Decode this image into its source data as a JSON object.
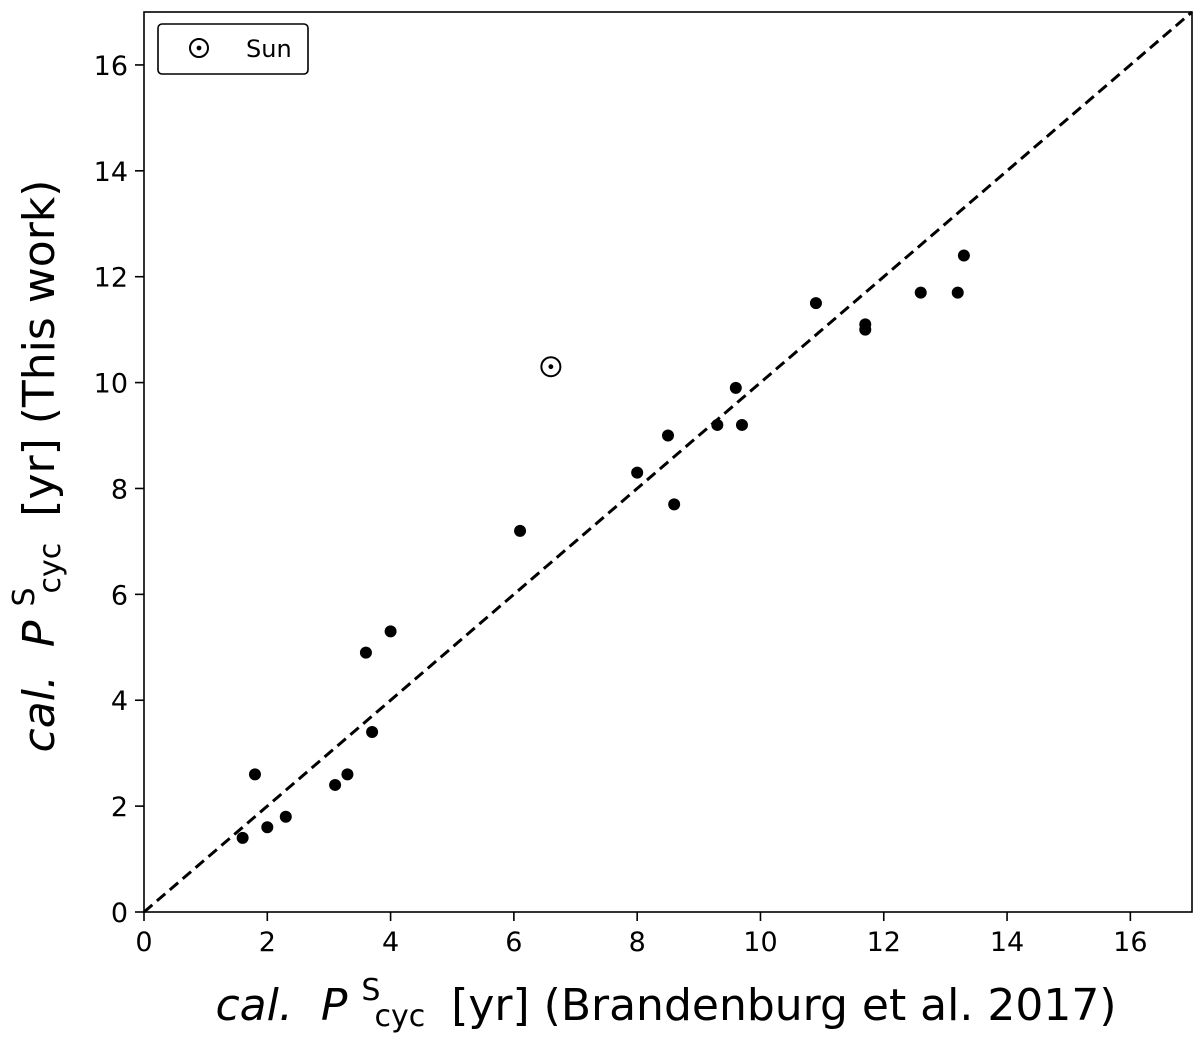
{
  "chart_data": {
    "type": "scatter",
    "xlabel": {
      "prefix": "cal.",
      "symbol": "P",
      "superscript": "S",
      "subscript": "cyc",
      "suffix": "[yr] (Brandenburg et al. 2017)"
    },
    "ylabel": {
      "prefix": "cal.",
      "symbol": "P",
      "superscript": "S",
      "subscript": "cyc",
      "suffix": "[yr] (This work)"
    },
    "xlim": [
      0,
      17
    ],
    "ylim": [
      0,
      17
    ],
    "xticks": [
      0,
      2,
      4,
      6,
      8,
      10,
      12,
      14,
      16
    ],
    "yticks": [
      0,
      2,
      4,
      6,
      8,
      10,
      12,
      14,
      16
    ],
    "grid": false,
    "legend": {
      "placement": "top-left",
      "entries": [
        {
          "label": "Sun",
          "marker": "sun-symbol"
        }
      ]
    },
    "reference_line": {
      "style": "dashed",
      "x": [
        0,
        17
      ],
      "y": [
        0,
        17
      ]
    },
    "colors": {
      "points": "#000000",
      "line": "#000000"
    },
    "series": [
      {
        "marker": "filled-circle",
        "points": [
          {
            "x": 1.6,
            "y": 1.4
          },
          {
            "x": 1.8,
            "y": 2.6
          },
          {
            "x": 2.0,
            "y": 1.6
          },
          {
            "x": 2.3,
            "y": 1.8
          },
          {
            "x": 3.1,
            "y": 2.4
          },
          {
            "x": 3.3,
            "y": 2.6
          },
          {
            "x": 3.6,
            "y": 4.9
          },
          {
            "x": 3.7,
            "y": 3.4
          },
          {
            "x": 4.0,
            "y": 5.3
          },
          {
            "x": 6.1,
            "y": 7.2
          },
          {
            "x": 8.0,
            "y": 8.3
          },
          {
            "x": 8.5,
            "y": 9.0
          },
          {
            "x": 8.6,
            "y": 7.7
          },
          {
            "x": 9.3,
            "y": 9.2
          },
          {
            "x": 9.6,
            "y": 9.9
          },
          {
            "x": 9.7,
            "y": 9.2
          },
          {
            "x": 10.9,
            "y": 11.5
          },
          {
            "x": 11.7,
            "y": 11.1
          },
          {
            "x": 11.7,
            "y": 11.0
          },
          {
            "x": 12.6,
            "y": 11.7
          },
          {
            "x": 13.2,
            "y": 11.7
          },
          {
            "x": 13.3,
            "y": 12.4
          }
        ]
      },
      {
        "name": "Sun",
        "marker": "sun-symbol",
        "points": [
          {
            "x": 6.6,
            "y": 10.3
          }
        ]
      }
    ]
  }
}
